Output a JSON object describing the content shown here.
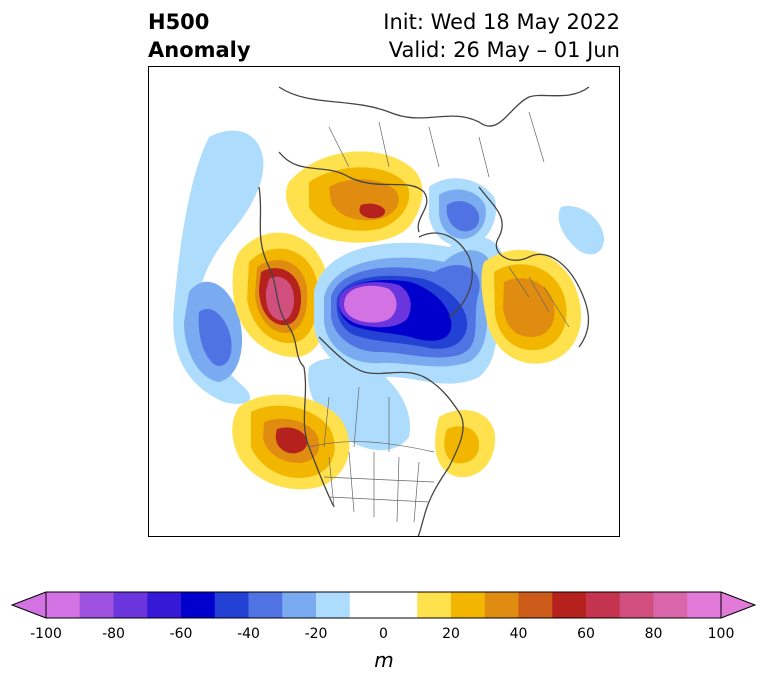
{
  "header": {
    "title_line1": "H500",
    "title_line2": "Anomaly",
    "init_text": "Init: Wed 18 May 2022",
    "valid_text": "Valid: 26 May – 01 Jun"
  },
  "map": {
    "projection": "north-polar-stereographic",
    "field": "500 hPa geopotential height anomaly",
    "features": [
      {
        "name": "negative-anomaly-center-arctic",
        "value_m": -100
      },
      {
        "name": "positive-anomaly-alaska",
        "value_m": 80
      },
      {
        "name": "positive-anomaly-siberia",
        "value_m": 60
      },
      {
        "name": "positive-anomaly-europe",
        "value_m": 40
      },
      {
        "name": "positive-anomaly-west-us",
        "value_m": 50
      },
      {
        "name": "positive-anomaly-north-atlantic",
        "value_m": 30
      },
      {
        "name": "negative-anomaly-north-pacific",
        "value_m": -40
      }
    ]
  },
  "colorbar": {
    "unit": "m",
    "tick_labels": [
      "-100",
      "-80",
      "-60",
      "-40",
      "-20",
      "0",
      "20",
      "40",
      "60",
      "80",
      "100"
    ],
    "levels": [
      -100,
      -90,
      -80,
      -70,
      -60,
      -50,
      -40,
      -30,
      -20,
      -10,
      10,
      20,
      30,
      40,
      50,
      60,
      70,
      80,
      90,
      100
    ],
    "colors": [
      "#d372e3",
      "#9d53e0",
      "#6a35dc",
      "#3619d6",
      "#0000cc",
      "#2441d6",
      "#4f73e2",
      "#7aabf0",
      "#addcfd",
      "#ffffff",
      "#ffe14d",
      "#f2b600",
      "#e08c10",
      "#cc5a18",
      "#b5221e",
      "#c4344e",
      "#d04f7c",
      "#d966aa",
      "#e27ad8"
    ],
    "extend_low_color": "#d372e3",
    "extend_high_color": "#e27ad8"
  }
}
